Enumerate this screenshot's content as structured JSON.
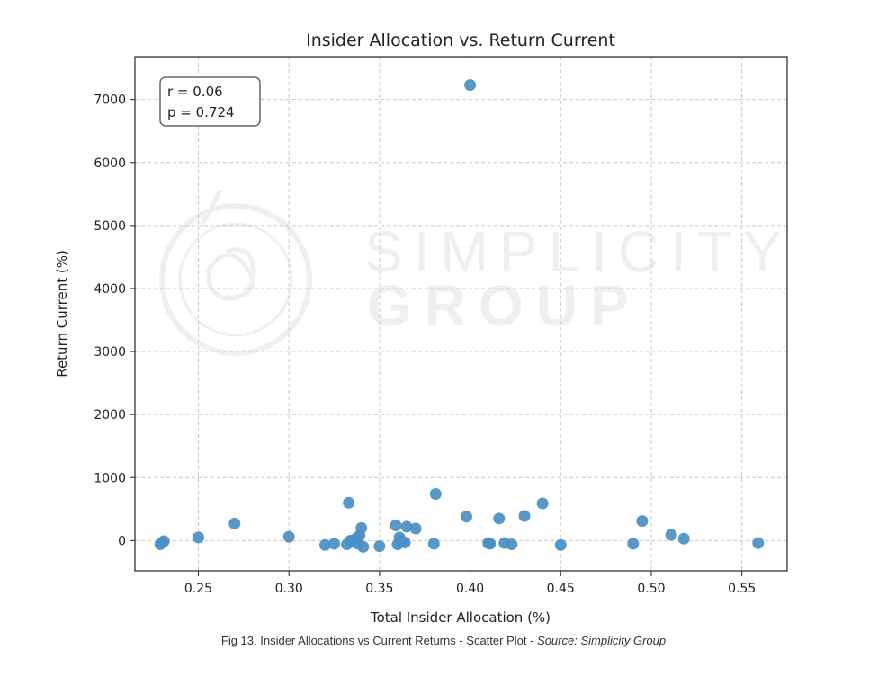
{
  "chart_data": {
    "type": "scatter",
    "title": "Insider Allocation vs. Return Current",
    "xlabel": "Total Insider Allocation (%)",
    "ylabel": "Return Current (%)",
    "xlim": [
      0.215,
      0.575
    ],
    "ylim": [
      -480,
      7680
    ],
    "xticks": [
      0.25,
      0.3,
      0.35,
      0.4,
      0.45,
      0.5,
      0.55
    ],
    "xtick_labels": [
      "0.25",
      "0.30",
      "0.35",
      "0.40",
      "0.45",
      "0.50",
      "0.55"
    ],
    "yticks": [
      0,
      1000,
      2000,
      3000,
      4000,
      5000,
      6000,
      7000
    ],
    "ytick_labels": [
      "0",
      "1000",
      "2000",
      "3000",
      "4000",
      "5000",
      "6000",
      "7000"
    ],
    "grid": true,
    "marker_color": "#4a8fc4",
    "annotation": {
      "r_text": "r = 0.06",
      "p_text": "p = 0.724",
      "placement": "top-left"
    },
    "x": [
      0.229,
      0.23,
      0.231,
      0.25,
      0.27,
      0.3,
      0.32,
      0.325,
      0.332,
      0.333,
      0.334,
      0.335,
      0.337,
      0.338,
      0.339,
      0.34,
      0.341,
      0.35,
      0.359,
      0.36,
      0.361,
      0.362,
      0.364,
      0.365,
      0.37,
      0.38,
      0.381,
      0.398,
      0.4,
      0.41,
      0.411,
      0.416,
      0.419,
      0.423,
      0.43,
      0.44,
      0.45,
      0.49,
      0.495,
      0.511,
      0.518,
      0.559
    ],
    "y": [
      -60,
      -30,
      -10,
      50,
      270,
      60,
      -70,
      -50,
      -60,
      600,
      0,
      -20,
      30,
      -50,
      80,
      200,
      -100,
      -90,
      240,
      -60,
      50,
      -10,
      -30,
      220,
      190,
      -50,
      740,
      380,
      7230,
      -40,
      -50,
      350,
      -40,
      -60,
      390,
      590,
      -70,
      -50,
      310,
      90,
      30,
      -40
    ]
  },
  "caption": {
    "main": "Fig 13. Insider Allocations vs Current Returns - Scatter Plot - ",
    "source": "Source: Simplicity Group"
  },
  "watermark": {
    "line1": "SIMPLICITY",
    "line2": "GROUP",
    "logo": "simplicity-group-logo"
  }
}
